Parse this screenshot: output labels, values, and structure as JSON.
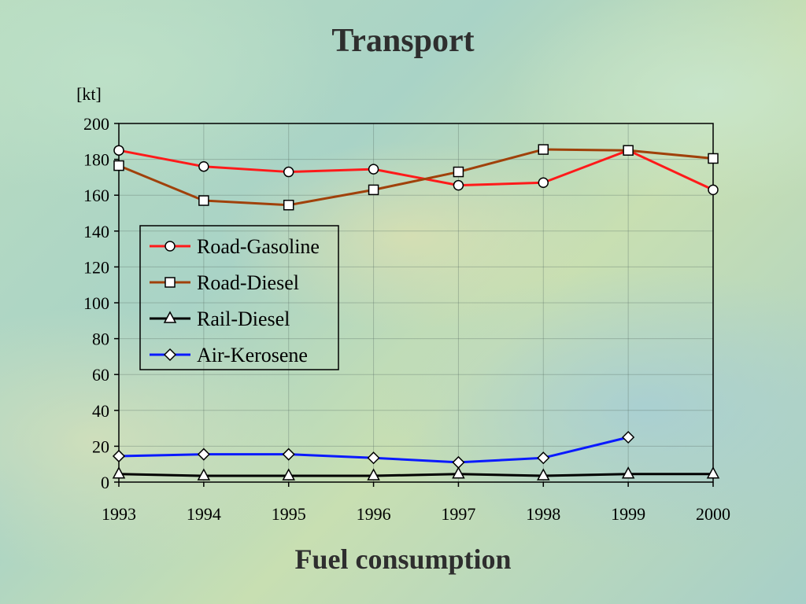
{
  "title": "Transport",
  "subtitle": "Fuel consumption",
  "chart_data": {
    "type": "line",
    "ylabel": "[kt]",
    "x": [
      "1993",
      "1994",
      "1995",
      "1996",
      "1997",
      "1998",
      "1999",
      "2000"
    ],
    "ylim": [
      0,
      200
    ],
    "yticks": [
      0,
      20,
      40,
      60,
      80,
      100,
      120,
      140,
      160,
      180,
      200
    ],
    "grid": true,
    "legend_position": "left-middle",
    "series": [
      {
        "name": "Road-Gasoline",
        "color": "#ff1a1a",
        "marker": "circle",
        "values": [
          185,
          176,
          173,
          174.5,
          165.5,
          167,
          185,
          163
        ]
      },
      {
        "name": "Road-Diesel",
        "color": "#a0410a",
        "marker": "square",
        "values": [
          176.5,
          157,
          154.5,
          163,
          173,
          185.5,
          185,
          180.5
        ]
      },
      {
        "name": "Rail-Diesel",
        "color": "#000000",
        "marker": "triangle",
        "values": [
          4.5,
          3.5,
          3.5,
          3.5,
          4.5,
          3.5,
          4.5,
          4.5
        ]
      },
      {
        "name": "Air-Kerosene",
        "color": "#0a1aff",
        "marker": "diamond",
        "values": [
          14.5,
          15.5,
          15.5,
          13.5,
          11,
          13.5,
          25,
          null
        ]
      }
    ]
  }
}
